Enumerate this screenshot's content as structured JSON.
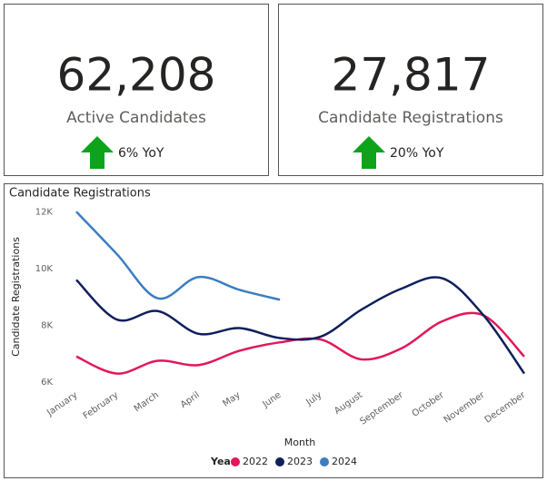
{
  "kpis": [
    {
      "value": "62,208",
      "label": "Active Candidates",
      "change": "6% YoY"
    },
    {
      "value": "27,817",
      "label": "Candidate Registrations",
      "change": "20% YoY"
    }
  ],
  "chart_data": {
    "type": "line",
    "title": "Candidate Registrations",
    "x_label": "Month",
    "y_label": "Candidate Registrations",
    "legend_title": "Year",
    "categories": [
      "January",
      "February",
      "March",
      "April",
      "May",
      "June",
      "July",
      "August",
      "September",
      "October",
      "November",
      "December"
    ],
    "series": [
      {
        "name": "2022",
        "color": "#e3165b",
        "values": [
          6900,
          6300,
          6750,
          6600,
          7100,
          7400,
          7500,
          6800,
          7200,
          8150,
          8350,
          6900
        ]
      },
      {
        "name": "2023",
        "color": "#0f1f5c",
        "values": [
          9600,
          8200,
          8500,
          7700,
          7900,
          7550,
          7600,
          8550,
          9300,
          9650,
          8350,
          6300
        ]
      },
      {
        "name": "2024",
        "color": "#3c7dc0",
        "values": [
          12000,
          10500,
          8950,
          9700,
          9250,
          8900,
          null,
          null,
          null,
          null,
          null,
          null
        ]
      }
    ],
    "ylim": [
      6000,
      12200
    ],
    "yticks": [
      {
        "value": 6000,
        "label": "6K"
      },
      {
        "value": 8000,
        "label": "8K"
      },
      {
        "value": 10000,
        "label": "10K"
      },
      {
        "value": 12000,
        "label": "12K"
      }
    ],
    "grid": false,
    "smooth": true
  }
}
